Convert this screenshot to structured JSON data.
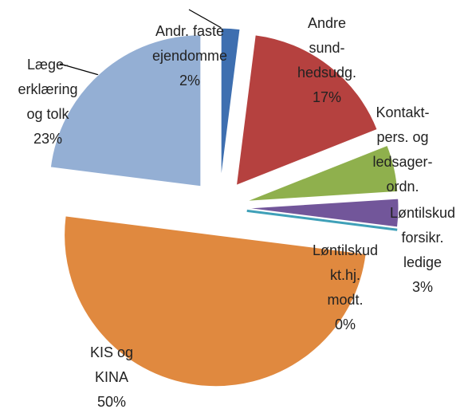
{
  "chart_data": {
    "type": "pie",
    "categories": [
      "Andr. faste\nejendomme",
      "Andre\nsund-\nhedsudg.",
      "Kontakt-\npers. og\nledsager-\nordn.",
      "Løntilskud\nforsikr.\nledige",
      "Løntilskud\nkt.hj.\nmodt.",
      "KIS og\nKINA",
      "Læge-\nerklæring\nog tolk"
    ],
    "values": [
      2,
      17,
      5,
      3,
      0,
      50,
      23
    ],
    "value_labels": [
      "2%",
      "17%",
      null,
      "3%",
      "0%",
      "50%",
      "23%"
    ],
    "colors": [
      "#3e6fb0",
      "#b5413f",
      "#8fb04d",
      "#72569a",
      "#3fa0b8",
      "#e0893f",
      "#94afd4"
    ]
  }
}
